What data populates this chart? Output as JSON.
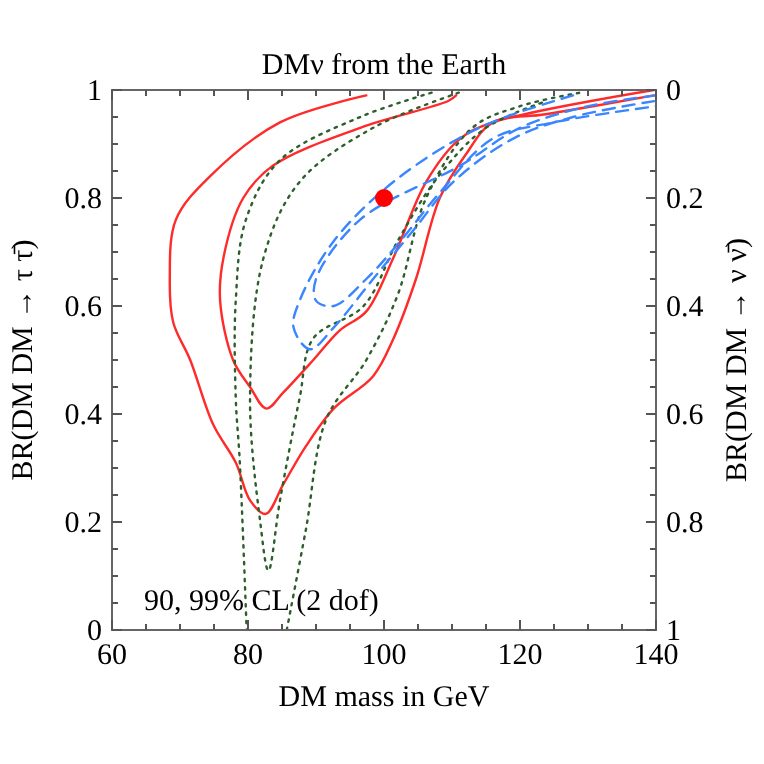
{
  "chart_data": {
    "type": "line",
    "title": "DMν from the Earth",
    "xlabel": "DM mass in GeV",
    "ylabel": "BR(DM DM → τ τ̄)",
    "y2label": "BR(DM DM → ν ν̄)",
    "xlim": [
      60,
      140
    ],
    "ylim": [
      0,
      1
    ],
    "y2lim": [
      1,
      0
    ],
    "xticks": [
      60,
      {
        "value": 65,
        "label": null
      },
      {
        "value": 70,
        "label": null
      },
      {
        "value": 75,
        "label": null
      },
      80,
      {
        "value": 85,
        "label": null
      },
      {
        "value": 90,
        "label": null
      },
      {
        "value": 95,
        "label": null
      },
      100,
      {
        "value": 105,
        "label": null
      },
      {
        "value": 110,
        "label": null
      },
      {
        "value": 115,
        "label": null
      },
      120,
      {
        "value": 125,
        "label": null
      },
      {
        "value": 130,
        "label": null
      },
      {
        "value": 135,
        "label": null
      },
      140
    ],
    "yticks": [
      0,
      {
        "value": 0.05,
        "label": null
      },
      {
        "value": 0.1,
        "label": null
      },
      {
        "value": 0.15,
        "label": null
      },
      0.2,
      {
        "value": 0.25,
        "label": null
      },
      {
        "value": 0.3,
        "label": null
      },
      {
        "value": 0.35,
        "label": null
      },
      0.4,
      {
        "value": 0.45,
        "label": null
      },
      {
        "value": 0.5,
        "label": null
      },
      {
        "value": 0.55,
        "label": null
      },
      0.6,
      {
        "value": 0.65,
        "label": null
      },
      {
        "value": 0.7,
        "label": null
      },
      {
        "value": 0.75,
        "label": null
      },
      0.8,
      {
        "value": 0.85,
        "label": null
      },
      {
        "value": 0.9,
        "label": null
      },
      {
        "value": 0.95,
        "label": null
      },
      1
    ],
    "y2ticks": [
      0,
      0.2,
      0.4,
      0.6,
      0.8,
      1
    ],
    "grid": false,
    "annotations": [
      "90, 99% CL (2 dof)"
    ],
    "series": [
      {
        "color": "#ff2a2a",
        "line_style": "solid",
        "x": [
          97.4,
          84.7,
          74.4,
          69.4,
          68.5,
          69,
          71.5,
          74.9,
          78.2,
          80.3,
          82.6,
          85.2,
          88.5,
          92.6,
          98.4,
          101.4,
          104.7,
          108.2,
          112,
          116,
          123.8,
          139.7
        ],
        "values": [
          0.99,
          0.94,
          0.84,
          0.76,
          0.65,
          0.57,
          0.5,
          0.38,
          0.31,
          0.24,
          0.215,
          0.27,
          0.34,
          0.41,
          0.47,
          0.54,
          0.65,
          0.8,
          0.88,
          0.94,
          0.955,
          0.99
        ]
      },
      {
        "color": "#ff2a2a",
        "line_style": "solid",
        "x": [
          110.6,
          109.5,
          96.5,
          83.7,
          79.3,
          76.4,
          75.9,
          77.8,
          80.3,
          82.7,
          85.2,
          89.6,
          93.5,
          97.4,
          101.4,
          106.2,
          111.2,
          116,
          139.7
        ],
        "values": [
          0.99,
          0.98,
          0.93,
          0.86,
          0.8,
          0.69,
          0.61,
          0.5,
          0.45,
          0.41,
          0.44,
          0.5,
          0.555,
          0.59,
          0.69,
          0.83,
          0.91,
          0.94,
          1
        ]
      },
      {
        "color": "#2e5e2e",
        "line_style": "dotted",
        "x": [
          107,
          96.5,
          84.7,
          79.7,
          78.2,
          78.2,
          78.8,
          79.8
        ],
        "values": [
          0.995,
          0.95,
          0.87,
          0.76,
          0.61,
          0.43,
          0.31,
          0
        ]
      },
      {
        "color": "#2e5e2e",
        "line_style": "dotted",
        "x": [
          85.7,
          88.5,
          91.5,
          97.4,
          102,
          106.2,
          113,
          120,
          128.8
        ],
        "values": [
          0,
          0.185,
          0.39,
          0.5,
          0.62,
          0.8,
          0.93,
          0.97,
          0.995
        ]
      },
      {
        "color": "#2e5e2e",
        "line_style": "dotted",
        "x": [
          111,
          98.4,
          87.6,
          82.3,
          80.3,
          81.8,
          83,
          84.7,
          87.6,
          89.6,
          97,
          102,
          108,
          115,
          124
        ],
        "values": [
          0.995,
          0.93,
          0.83,
          0.69,
          0.43,
          0.2,
          0.11,
          0.24,
          0.43,
          0.54,
          0.6,
          0.72,
          0.84,
          0.93,
          0.98
        ]
      },
      {
        "color": "#3a86ff",
        "line_style": "dashed",
        "x": [
          127.8,
          114,
          101.4,
          92.6,
          87.6,
          86.7,
          89.1,
          92.6,
          98.4,
          104.3,
          110.2,
          119,
          127.8,
          140
        ],
        "values": [
          0.99,
          0.93,
          0.83,
          0.72,
          0.61,
          0.56,
          0.52,
          0.56,
          0.65,
          0.74,
          0.83,
          0.91,
          0.95,
          0.98
        ]
      },
      {
        "color": "#3a86ff",
        "line_style": "dashed",
        "x": [
          140,
          130,
          120,
          111.2,
          96.5,
          90,
          90,
          92.6,
          97.4,
          102.4,
          108.2,
          116,
          124.9,
          140
        ],
        "values": [
          0.99,
          0.97,
          0.93,
          0.86,
          0.76,
          0.65,
          0.61,
          0.6,
          0.65,
          0.72,
          0.81,
          0.91,
          0.94,
          0.97
        ]
      },
      {
        "type": "scatter",
        "color": "#ff0000",
        "marker": "circle",
        "x": [
          100
        ],
        "values": [
          0.8
        ]
      }
    ]
  }
}
